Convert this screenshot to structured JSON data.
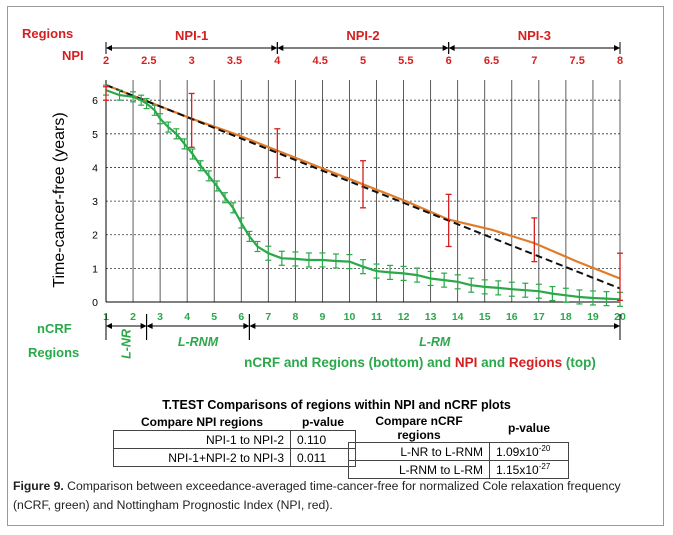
{
  "chart_data": {
    "type": "line",
    "ylabel": "Time-cancer-free (years)",
    "bottom_axis": {
      "title": "nCRF",
      "ticks": [
        1,
        2,
        3,
        4,
        5,
        6,
        7,
        8,
        9,
        10,
        11,
        12,
        13,
        14,
        15,
        16,
        17,
        18,
        19,
        20
      ],
      "range": [
        1,
        20
      ]
    },
    "top_axis": {
      "title": "NPI",
      "ticks": [
        "2",
        "2.5",
        "3",
        "3.5",
        "4",
        "4.5",
        "5",
        "5.5",
        "6",
        "6.5",
        "7",
        "7.5",
        "8"
      ],
      "range": [
        2,
        8
      ]
    },
    "y_ticks": [
      0,
      1,
      2,
      3,
      4,
      5,
      6
    ],
    "ylim": [
      0,
      6.6
    ],
    "grid": true,
    "top_regions_label": "Regions",
    "top_regions": [
      {
        "name": "NPI-1",
        "from": 2,
        "to": 4
      },
      {
        "name": "NPI-2",
        "from": 4,
        "to": 6
      },
      {
        "name": "NPI-3",
        "from": 6,
        "to": 8
      }
    ],
    "bottom_regions_label": "Regions",
    "bottom_regions": [
      {
        "name": "L-NR",
        "from": 1,
        "to": 2.5
      },
      {
        "name": "L-RNM",
        "from": 2.5,
        "to": 6.3
      },
      {
        "name": "L-RM",
        "from": 6.3,
        "to": 20
      }
    ],
    "legend_text": {
      "p1": "nCRF",
      "p2": " and ",
      "p3": "Regions",
      "p4": " (bottom) and ",
      "p5": "NPI",
      "p6": " and ",
      "p7": "Regions",
      "p8": " (top)"
    },
    "series": [
      {
        "color": "#e07b2a",
        "axis": "top",
        "x": [
          2,
          2.5,
          3,
          3.5,
          4,
          4.5,
          5,
          5.5,
          6,
          6.5,
          7,
          7.5,
          8
        ],
        "y": [
          6.45,
          5.95,
          5.45,
          5.0,
          4.5,
          4.0,
          3.5,
          3.0,
          2.45,
          2.15,
          1.75,
          1.2,
          0.7
        ]
      },
      {
        "color": "#111111",
        "axis": "top",
        "dashed": true,
        "x": [
          2,
          8
        ],
        "y": [
          6.45,
          0.4
        ]
      },
      {
        "color": "#2aa84a",
        "axis": "bottom",
        "x": [
          1,
          1.5,
          2,
          2.3,
          2.5,
          2.8,
          3.0,
          3.3,
          3.6,
          3.9,
          4.2,
          4.5,
          4.8,
          5.1,
          5.4,
          5.7,
          6.0,
          6.3,
          6.6,
          7.0,
          7.5,
          8.0,
          8.5,
          9.0,
          9.5,
          10.0,
          10.5,
          11.0,
          11.5,
          12.0,
          12.5,
          13.0,
          13.5,
          14.0,
          14.5,
          15.0,
          15.5,
          16.0,
          16.5,
          17.0,
          17.5,
          18.0,
          18.5,
          19.0,
          19.5,
          20.0
        ],
        "y": [
          6.3,
          6.15,
          6.1,
          6.0,
          5.9,
          5.7,
          5.45,
          5.2,
          5.0,
          4.7,
          4.4,
          4.05,
          3.75,
          3.45,
          3.1,
          2.8,
          2.35,
          1.95,
          1.65,
          1.45,
          1.3,
          1.28,
          1.25,
          1.25,
          1.22,
          1.2,
          1.05,
          0.92,
          0.88,
          0.85,
          0.8,
          0.7,
          0.65,
          0.6,
          0.5,
          0.45,
          0.42,
          0.38,
          0.35,
          0.32,
          0.25,
          0.2,
          0.15,
          0.12,
          0.1,
          0.08
        ]
      }
    ],
    "error_bars_top": [
      {
        "x": 2,
        "lo": 6.0,
        "hi": 6.4
      },
      {
        "x": 3,
        "lo": 4.6,
        "hi": 6.2
      },
      {
        "x": 4,
        "lo": 3.7,
        "hi": 5.15
      },
      {
        "x": 5,
        "lo": 2.8,
        "hi": 4.2
      },
      {
        "x": 6,
        "lo": 1.65,
        "hi": 3.2
      },
      {
        "x": 7,
        "lo": 1.2,
        "hi": 2.5
      },
      {
        "x": 8,
        "lo": 0.05,
        "hi": 1.45
      }
    ],
    "error_color": "#d42020"
  },
  "ttest": {
    "title": "T.TEST Comparisons of regions within NPI and nCRF plots",
    "npi_table": {
      "headers": [
        "Compare NPI regions",
        "p-value"
      ],
      "rows": [
        [
          "NPI-1 to NPI-2",
          "0.110"
        ],
        [
          "NPI-1+NPI-2 to NPI-3",
          "0.011"
        ]
      ]
    },
    "ncrf_table": {
      "headers": [
        "Compare nCRF regions",
        "p-value"
      ],
      "rows": [
        {
          "label": "L-NR to L-RNM",
          "base": "1.09x10",
          "exp": "-20"
        },
        {
          "label": "L-RNM to L-RM",
          "base": "1.15x10",
          "exp": "-27"
        }
      ]
    }
  },
  "caption": {
    "fig": "Figure 9.",
    "text": " Comparison between exceedance-averaged time-cancer-free for normalized Cole relaxation frequency (nCRF, green) and Nottingham Prognostic Index (NPI, red)."
  }
}
